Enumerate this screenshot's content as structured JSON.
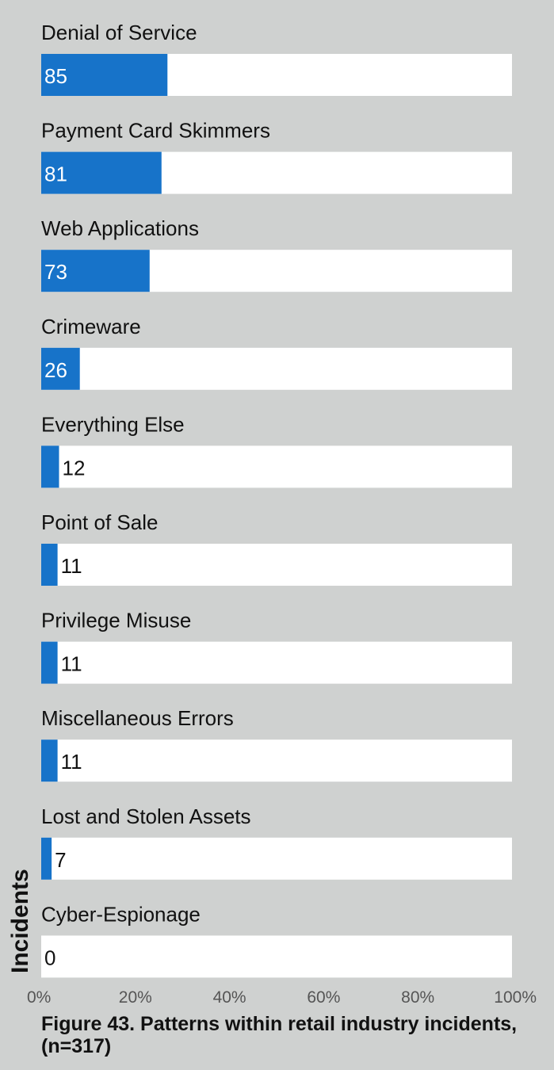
{
  "chart_data": {
    "type": "bar",
    "orientation": "horizontal",
    "categories": [
      "Denial of Service",
      "Payment Card Skimmers",
      "Web Applications",
      "Crimeware",
      "Everything Else",
      "Point of Sale",
      "Privilege Misuse",
      "Miscellaneous Errors",
      "Lost and Stolen Assets",
      "Cyber-Espionage"
    ],
    "values": [
      85,
      81,
      73,
      26,
      12,
      11,
      11,
      11,
      7,
      0
    ],
    "total_n": 317,
    "x_ticks": [
      "0%",
      "20%",
      "40%",
      "60%",
      "80%",
      "100%"
    ],
    "xlim": [
      0,
      100
    ],
    "ylabel": "Incidents",
    "title": "Figure 43.  Patterns within retail industry incidents, (n=317)",
    "grid": false,
    "colors": {
      "bar": "#1773c9",
      "track": "#ffffff",
      "background": "#cfd1d0"
    }
  }
}
